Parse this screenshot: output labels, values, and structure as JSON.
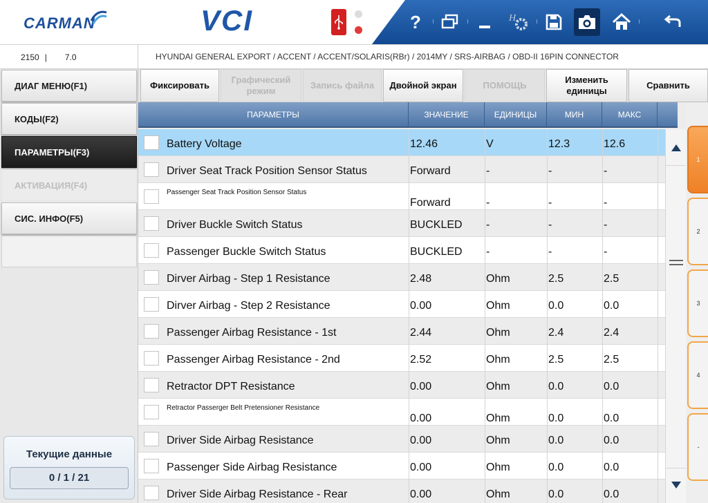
{
  "header": {
    "brand": "CARMAN",
    "product": "VCI",
    "toolbar_icons": [
      "help-icon",
      "screens-icon",
      "minimize-icon",
      "settings-icon",
      "save-icon",
      "camera-icon",
      "home-icon",
      "back-icon"
    ],
    "help_glyph": "?"
  },
  "infobar": {
    "left_a": "2150",
    "left_sep": "|",
    "left_b": "7.0",
    "path": "HYUNDAI GENERAL EXPORT / ACCENT / ACCENT/SOLARIS(RBr) / 2014MY / SRS-AIRBAG / OBD-II 16PIN CONNECTOR"
  },
  "menu": {
    "items": [
      {
        "label": "ДИАГ МЕНЮ(F1)",
        "state": "normal"
      },
      {
        "label": "КОДЫ(F2)",
        "state": "normal"
      },
      {
        "label": "ПАРАМЕТРЫ(F3)",
        "state": "active"
      },
      {
        "label": "АКТИВАЦИЯ(F4)",
        "state": "disabled"
      },
      {
        "label": "СИС. ИНФО(F5)",
        "state": "normal"
      }
    ],
    "current_title": "Текущие данные",
    "current_count": "0 / 1 / 21"
  },
  "functions": {
    "fix": "Фиксировать",
    "graph": "Графический режим",
    "record": "Запись файла",
    "dual": "Двойной экран",
    "help": "ПОМОЩЬ",
    "units": "Изменить единицы",
    "compare": "Сравнить"
  },
  "table": {
    "headers": {
      "param": "ПАРАМЕТРЫ",
      "value": "ЗНАЧЕНИЕ",
      "unit": "ЕДИНИЦЫ",
      "min": "МИН",
      "max": "МАКС"
    },
    "rows": [
      {
        "name": "Battery Voltage",
        "value": "12.46",
        "unit": "V",
        "min": "12.3",
        "max": "12.6"
      },
      {
        "name": "Driver Seat Track Position Sensor Status",
        "value": "Forward",
        "unit": "-",
        "min": "-",
        "max": "-"
      },
      {
        "name": "Passenger Seat Track Position Sensor Status",
        "value": "Forward",
        "unit": "-",
        "min": "-",
        "max": "-"
      },
      {
        "name": "Driver Buckle Switch Status",
        "value": "BUCKLED",
        "unit": "-",
        "min": "-",
        "max": "-"
      },
      {
        "name": "Passenger Buckle Switch Status",
        "value": "BUCKLED",
        "unit": "-",
        "min": "-",
        "max": "-"
      },
      {
        "name": "Dirver Airbag - Step 1 Resistance",
        "value": "2.48",
        "unit": "Ohm",
        "min": "2.5",
        "max": "2.5"
      },
      {
        "name": "Dirver Airbag - Step 2 Resistance",
        "value": "0.00",
        "unit": "Ohm",
        "min": "0.0",
        "max": "0.0"
      },
      {
        "name": "Passenger Airbag Resistance - 1st",
        "value": "2.44",
        "unit": "Ohm",
        "min": "2.4",
        "max": "2.4"
      },
      {
        "name": "Passenger Airbag Resistance - 2nd",
        "value": "2.52",
        "unit": "Ohm",
        "min": "2.5",
        "max": "2.5"
      },
      {
        "name": "Retractor DPT Resistance",
        "value": "0.00",
        "unit": "Ohm",
        "min": "0.0",
        "max": "0.0"
      },
      {
        "name": "Retractor Passerger Belt Pretensioner Resistance",
        "value": "0.00",
        "unit": "Ohm",
        "min": "0.0",
        "max": "0.0"
      },
      {
        "name": "Driver Side Airbag Resistance",
        "value": "0.00",
        "unit": "Ohm",
        "min": "0.0",
        "max": "0.0"
      },
      {
        "name": "Passenger Side Airbag Resistance",
        "value": "0.00",
        "unit": "Ohm",
        "min": "0.0",
        "max": "0.0"
      },
      {
        "name": "Driver Side Airbag Resistance - Rear",
        "value": "0.00",
        "unit": "Ohm",
        "min": "0.0",
        "max": "0.0"
      }
    ],
    "selected_row": 0
  },
  "pages": {
    "labels": [
      "1",
      "2",
      "3",
      "4",
      "-"
    ],
    "active": 0
  },
  "colors": {
    "accent": "#1f57a8",
    "header_blue": "#4f76a8",
    "selected_row": "#a7d8f7",
    "page_tab_orange": "#ef8127"
  }
}
